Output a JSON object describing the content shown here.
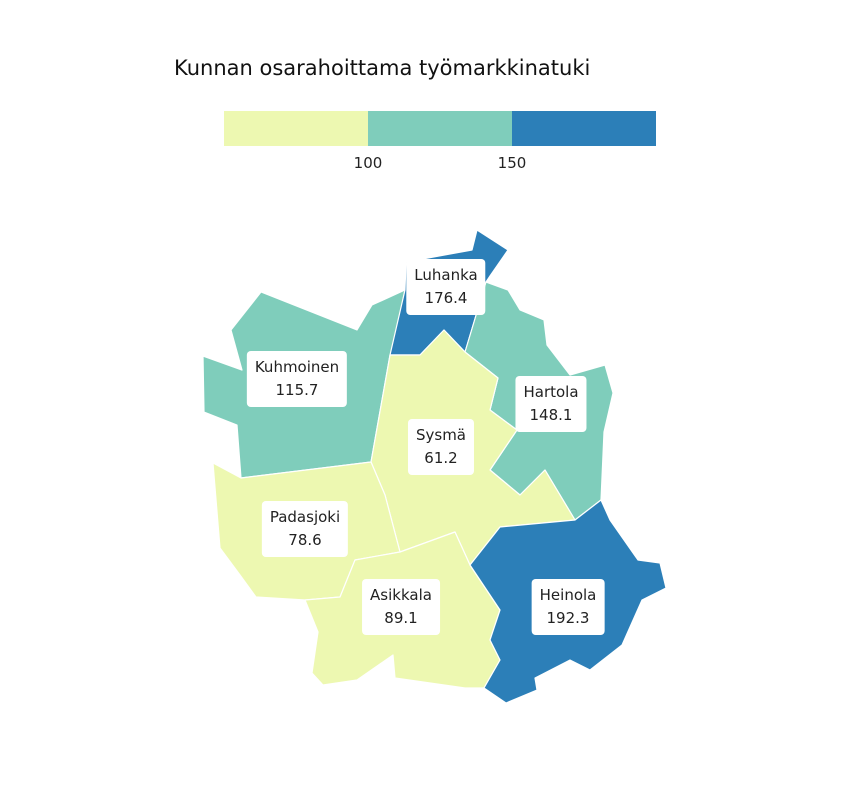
{
  "title": "Kunnan osarahoittama työmarkkinatuki",
  "colors": {
    "low": "#edf8b1",
    "mid": "#7fcdbb",
    "high": "#2c7fb8"
  },
  "legend": {
    "ticks": [
      "100",
      "150"
    ],
    "bins": [
      {
        "max": 100,
        "color": "#edf8b1"
      },
      {
        "min": 100,
        "max": 150,
        "color": "#7fcdbb"
      },
      {
        "min": 150,
        "color": "#2c7fb8"
      }
    ]
  },
  "municipalities": [
    {
      "name": "Luhanka",
      "value": "176.4",
      "color": "#2c7fb8"
    },
    {
      "name": "Kuhmoinen",
      "value": "115.7",
      "color": "#7fcdbb"
    },
    {
      "name": "Hartola",
      "value": "148.1",
      "color": "#7fcdbb"
    },
    {
      "name": "Sysmä",
      "value": "61.2",
      "color": "#edf8b1"
    },
    {
      "name": "Padasjoki",
      "value": "78.6",
      "color": "#edf8b1"
    },
    {
      "name": "Asikkala",
      "value": "89.1",
      "color": "#edf8b1"
    },
    {
      "name": "Heinola",
      "value": "192.3",
      "color": "#2c7fb8"
    }
  ]
}
